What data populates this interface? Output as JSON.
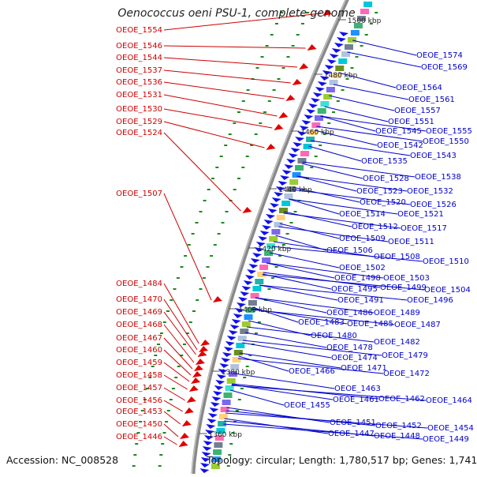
{
  "title": "Oenococcus oeni PSU-1, complete genome",
  "accession_label": "Accession: NC_008528",
  "topology_label": "Topology: circular; Length: 1,780,517 bp; Genes: 1,741",
  "colors": {
    "forward_label": "#cc0000",
    "forward_feature": "#e00000",
    "reverse_label": "#0000cc",
    "reverse_feature": "#1010ee",
    "backbone": "#888888",
    "tick": "#1a8a1a"
  },
  "kbp_ticks": [
    "1500 kbp",
    "1480 kbp",
    "1460 kbp",
    "1440 kbp",
    "1420 kbp",
    "1400 kbp",
    "1380 kbp",
    "1360 kbp"
  ],
  "forward_genes": [
    "OEOE_1554",
    "OEOE_1546",
    "OEOE_1544",
    "OEOE_1537",
    "OEOE_1536",
    "OEOE_1531",
    "OEOE_1530",
    "OEOE_1529",
    "OEOE_1524",
    "OEOE_1507",
    "OEOE_1484",
    "OEOE_1470",
    "OEOE_1469",
    "OEOE_1468",
    "OEOE_1467",
    "OEOE_1460",
    "OEOE_1459",
    "OEOE_1458",
    "OEOE_1457",
    "OEOE_1456",
    "OEOE_1453",
    "OEOE_1450",
    "OEOE_1446"
  ],
  "reverse_genes": [
    "OEOE_1574",
    "OEOE_1569",
    "OEOE_1564",
    "OEOE_1561",
    "OEOE_1557",
    "OEOE_1555",
    "OEOE_1551",
    "OEOE_1550",
    "OEOE_1545",
    "OEOE_1543",
    "OEOE_1542",
    "OEOE_1535",
    "OEOE_1538",
    "OEOE_1528",
    "OEOE_1532",
    "OEOE_1523",
    "OEOE_1526",
    "OEOE_1520",
    "OEOE_1521",
    "OEOE_1514",
    "OEOE_1517",
    "OEOE_1512",
    "OEOE_1511",
    "OEOE_1509",
    "OEOE_1510",
    "OEOE_1506",
    "OEOE_1508",
    "OEOE_1502",
    "OEOE_1503",
    "OEOE_1498",
    "OEOE_1504",
    "OEOE_1499",
    "OEOE_1495",
    "OEOE_1496",
    "OEOE_1491",
    "OEOE_1489",
    "OEOE_1486",
    "OEOE_1487",
    "OEOE_1485",
    "OEOE_1483",
    "OEOE_1480",
    "OEOE_1482",
    "OEOE_1478",
    "OEOE_1479",
    "OEOE_1474",
    "OEOE_1471",
    "OEOE_1472",
    "OEOE_1466",
    "OEOE_1463",
    "OEOE_1464",
    "OEOE_1461",
    "OEOE_1462",
    "OEOE_1455",
    "OEOE_1454",
    "OEOE_1451",
    "OEOE_1452",
    "OEOE_1449",
    "OEOE_1447",
    "OEOE_1448"
  ]
}
